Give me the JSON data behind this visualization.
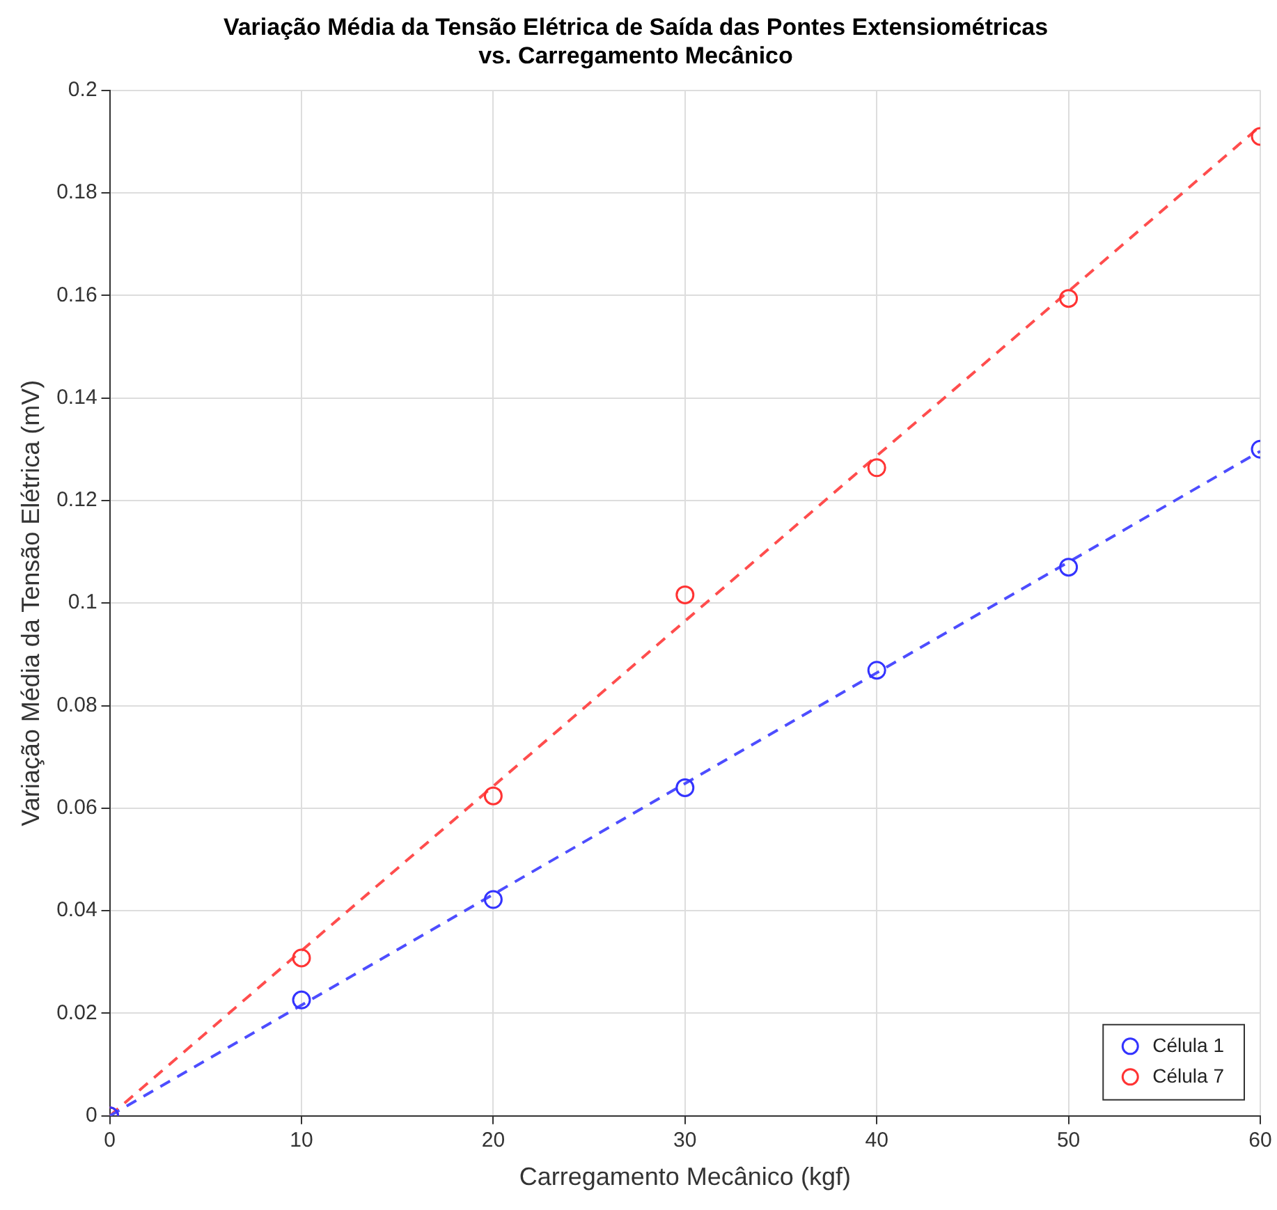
{
  "chart_data": {
    "type": "scatter",
    "title": "Variação Média da Tensão Elétrica de Saída das Pontes Extensiométricas\nvs. Carregamento Mecânico",
    "xlabel": "Carregamento Mecânico (kgf)",
    "ylabel": "Variação Média da Tensão Elétrica (mV)",
    "x": [
      0,
      10,
      20,
      30,
      40,
      50,
      60
    ],
    "series": [
      {
        "name": "Célula 1",
        "color": "#3333ff",
        "values": [
          0,
          0.0226,
          0.0422,
          0.064,
          0.0869,
          0.107,
          0.13
        ],
        "marker": "circle"
      },
      {
        "name": "Célula 7",
        "color": "#ff3333",
        "values": [
          0,
          0.0308,
          0.0624,
          0.1016,
          0.1264,
          0.1594,
          0.191
        ],
        "marker": "circle"
      },
      {
        "type": "line",
        "color": "#4d4dff",
        "values": [
          0,
          0.0216,
          0.0432,
          0.0648,
          0.0864,
          0.108,
          0.1296
        ],
        "marker": "none",
        "line_style": "dashed"
      },
      {
        "type": "line",
        "color": "#ff4d4d",
        "values": [
          0,
          0.0322,
          0.0643,
          0.0965,
          0.1287,
          0.1608,
          0.193
        ],
        "marker": "none",
        "line_style": "dashed"
      }
    ],
    "xlim": [
      0,
      60
    ],
    "xticks": [
      0,
      10,
      20,
      30,
      40,
      50,
      60
    ],
    "ylim": [
      0,
      0.2
    ],
    "yticks": [
      0,
      0.02,
      0.04,
      0.06,
      0.08,
      0.1,
      0.12,
      0.14,
      0.16,
      0.18,
      0.2
    ],
    "grid": true,
    "legend": "bottom right"
  }
}
